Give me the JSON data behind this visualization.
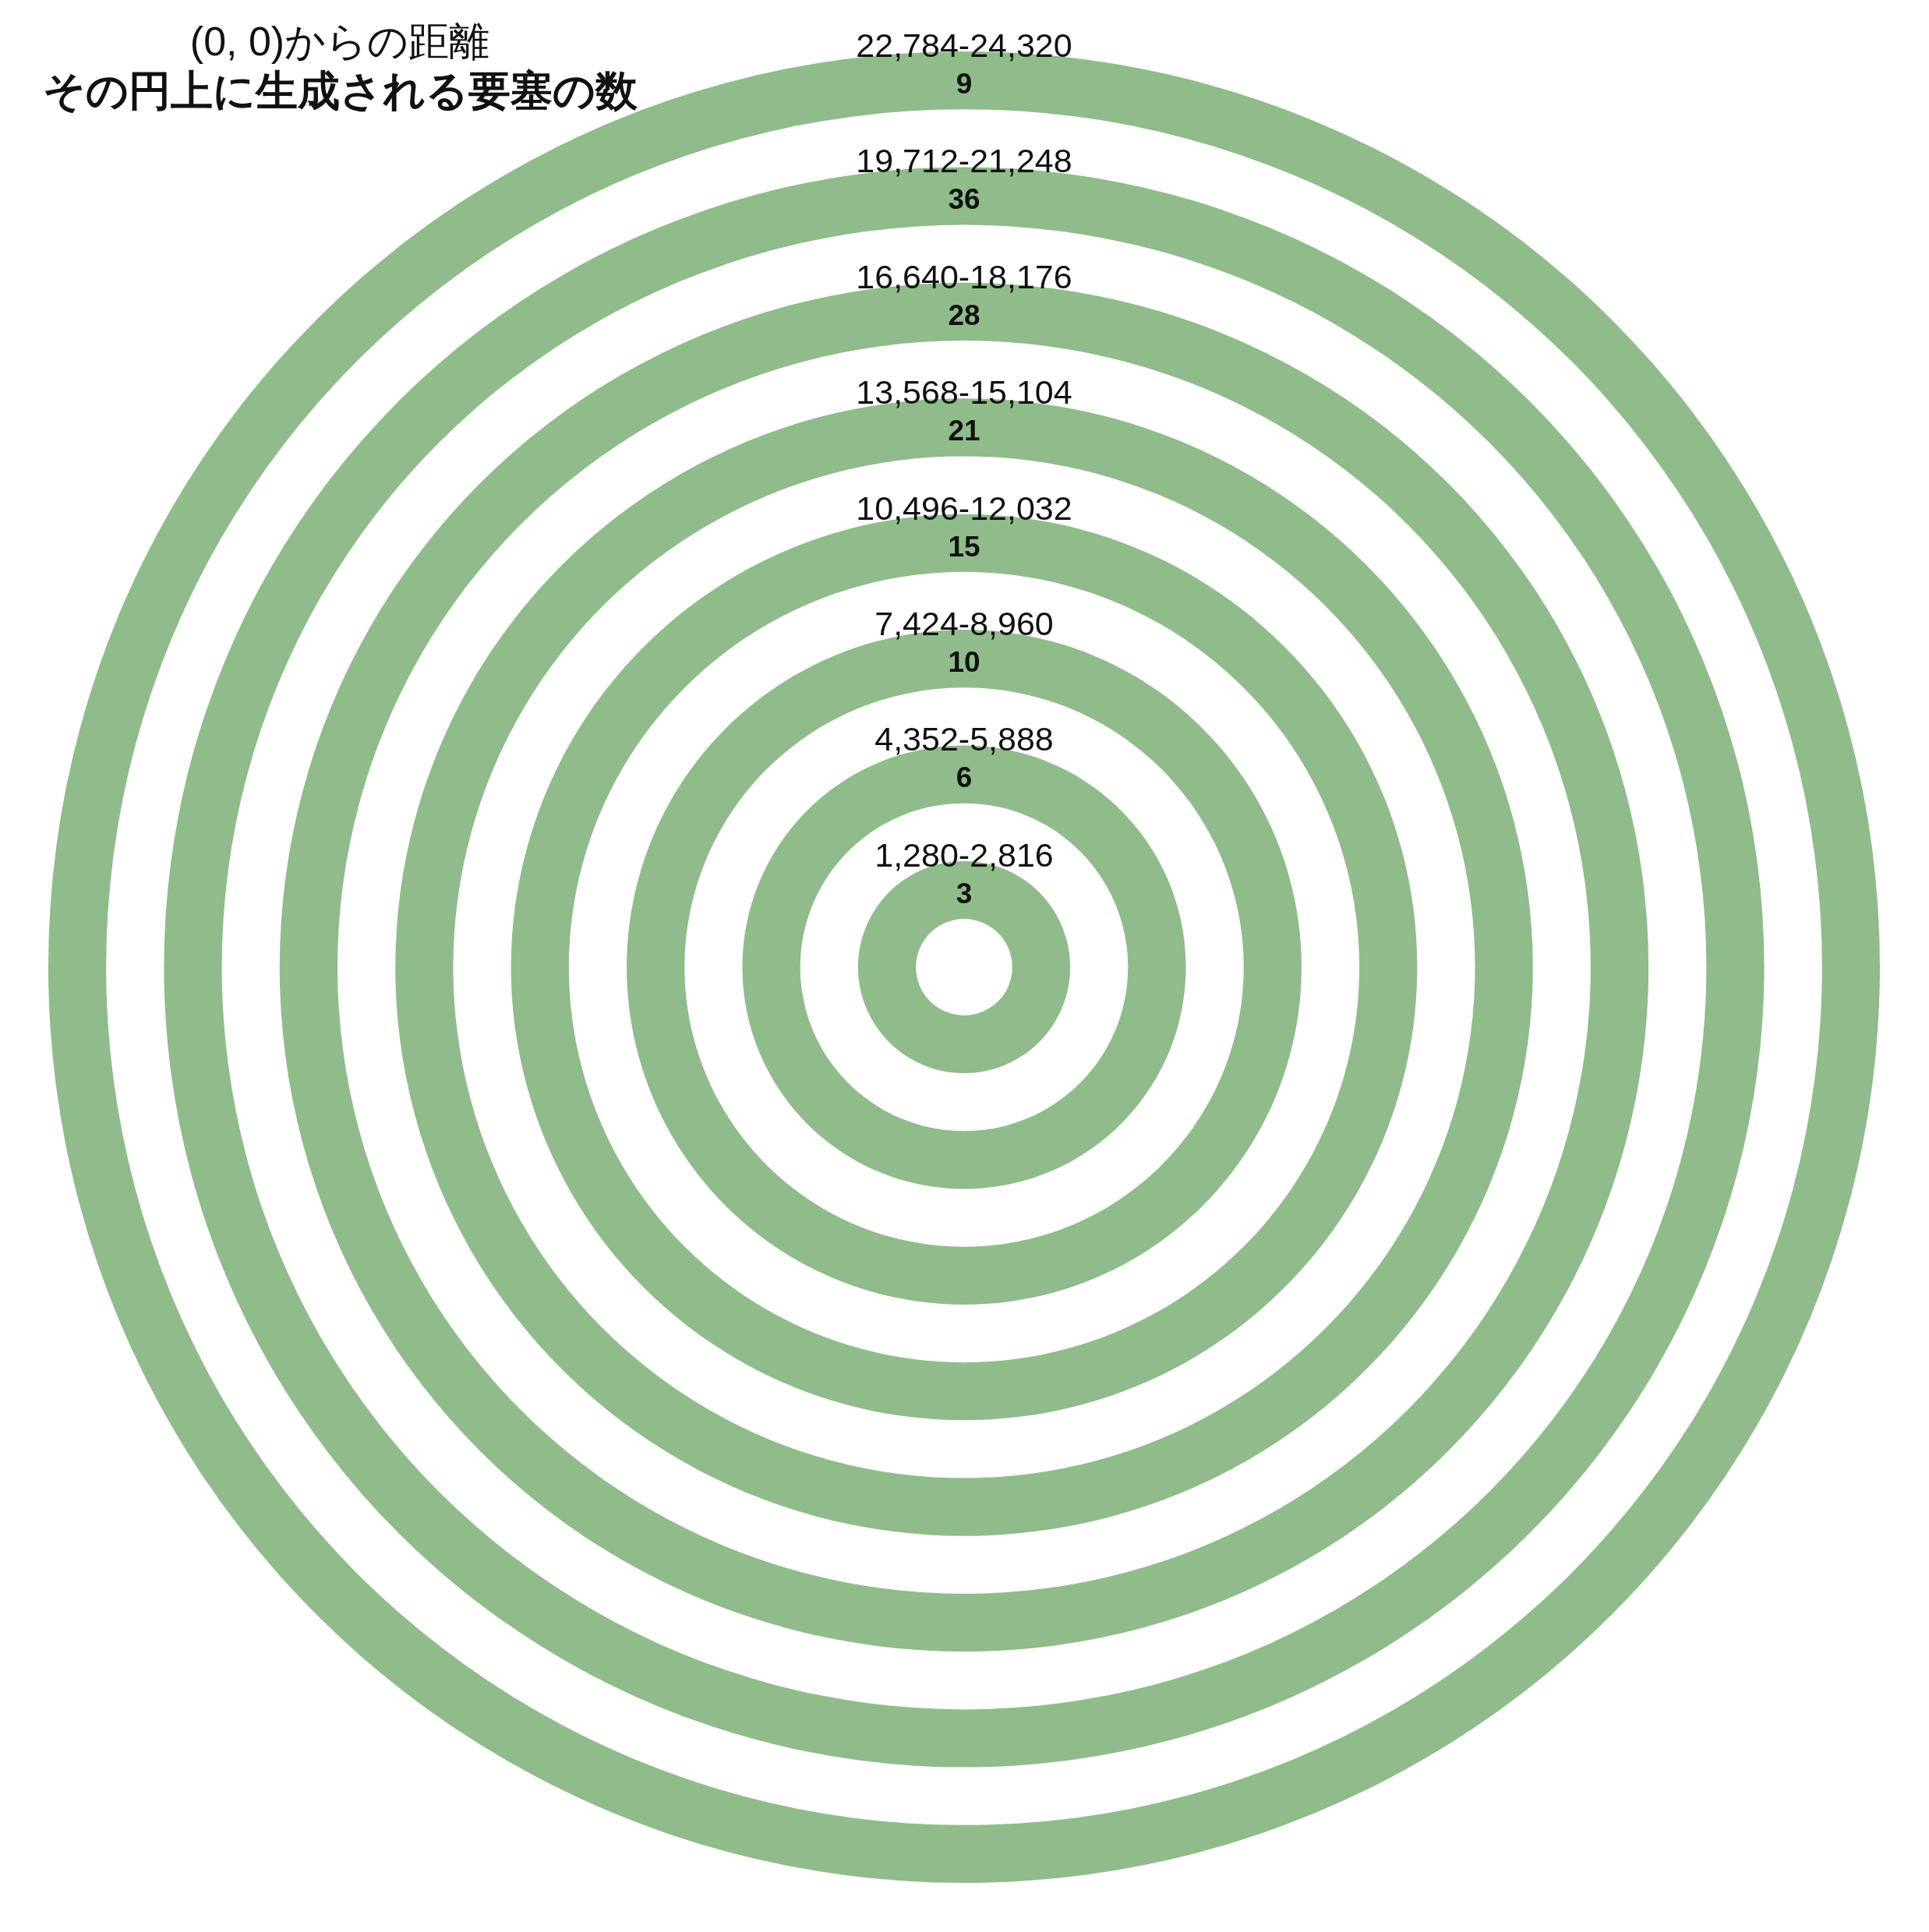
{
  "chart_data": {
    "type": "other",
    "title": "(0, 0)からの距離",
    "subtitle": "その円上に生成される要塞の数",
    "categories": [
      "1,280-2,816",
      "4,352-5,888",
      "7,424-8,960",
      "10,496-12,032",
      "13,568-15,104",
      "16,640-18,176",
      "19,712-21,248",
      "22,784-24,320"
    ],
    "values": [
      3,
      6,
      10,
      15,
      21,
      28,
      36,
      9
    ],
    "color": "#8fbc8a",
    "data_labels": true
  }
}
